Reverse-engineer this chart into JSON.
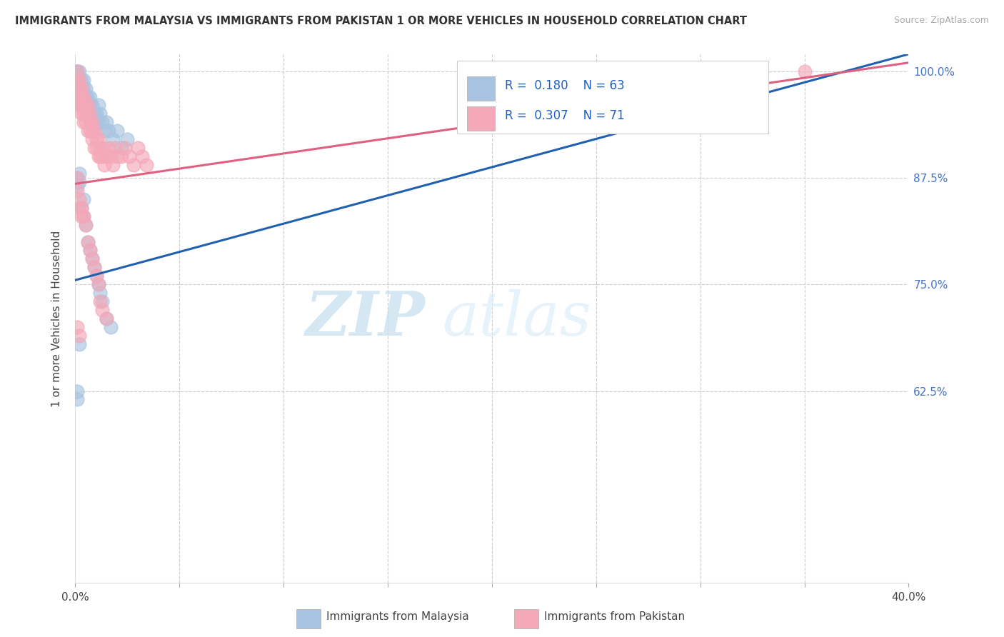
{
  "title": "IMMIGRANTS FROM MALAYSIA VS IMMIGRANTS FROM PAKISTAN 1 OR MORE VEHICLES IN HOUSEHOLD CORRELATION CHART",
  "source": "Source: ZipAtlas.com",
  "ylabel": "1 or more Vehicles in Household",
  "xlim": [
    0.0,
    0.4
  ],
  "ylim": [
    0.4,
    1.02
  ],
  "malaysia_R": 0.18,
  "malaysia_N": 63,
  "pakistan_R": 0.307,
  "pakistan_N": 71,
  "malaysia_color": "#a8c4e0",
  "pakistan_color": "#f4a8b8",
  "malaysia_line_color": "#2060b0",
  "pakistan_line_color": "#e06080",
  "legend_label_malaysia": "Immigrants from Malaysia",
  "legend_label_pakistan": "Immigrants from Pakistan",
  "watermark_zip": "ZIP",
  "watermark_atlas": "atlas",
  "ytick_values": [
    1.0,
    0.875,
    0.75,
    0.625
  ],
  "ytick_labels": [
    "100.0%",
    "87.5%",
    "75.0%",
    "62.5%"
  ],
  "xtick_values": [
    0.0,
    0.05,
    0.1,
    0.15,
    0.2,
    0.25,
    0.3,
    0.35,
    0.4
  ],
  "malaysia_x": [
    0.001,
    0.001,
    0.001,
    0.002,
    0.002,
    0.002,
    0.002,
    0.003,
    0.003,
    0.003,
    0.003,
    0.004,
    0.004,
    0.004,
    0.004,
    0.005,
    0.005,
    0.005,
    0.005,
    0.006,
    0.006,
    0.006,
    0.007,
    0.007,
    0.007,
    0.008,
    0.008,
    0.009,
    0.009,
    0.01,
    0.01,
    0.011,
    0.011,
    0.012,
    0.013,
    0.014,
    0.015,
    0.016,
    0.018,
    0.02,
    0.022,
    0.025,
    0.001,
    0.001,
    0.002,
    0.002,
    0.003,
    0.004,
    0.004,
    0.005,
    0.006,
    0.007,
    0.008,
    0.009,
    0.01,
    0.011,
    0.012,
    0.013,
    0.015,
    0.017,
    0.001,
    0.001,
    0.002
  ],
  "malaysia_y": [
    1.0,
    1.0,
    0.99,
    1.0,
    0.99,
    0.98,
    0.97,
    0.99,
    0.98,
    0.97,
    0.96,
    0.97,
    0.96,
    0.98,
    0.99,
    0.97,
    0.96,
    0.98,
    0.97,
    0.96,
    0.95,
    0.97,
    0.96,
    0.95,
    0.97,
    0.95,
    0.96,
    0.95,
    0.94,
    0.95,
    0.94,
    0.94,
    0.96,
    0.95,
    0.94,
    0.93,
    0.94,
    0.93,
    0.92,
    0.93,
    0.91,
    0.92,
    0.875,
    0.865,
    0.88,
    0.87,
    0.84,
    0.83,
    0.85,
    0.82,
    0.8,
    0.79,
    0.78,
    0.77,
    0.76,
    0.75,
    0.74,
    0.73,
    0.71,
    0.7,
    0.625,
    0.615,
    0.68
  ],
  "pakistan_x": [
    0.001,
    0.001,
    0.001,
    0.002,
    0.002,
    0.002,
    0.002,
    0.003,
    0.003,
    0.003,
    0.003,
    0.004,
    0.004,
    0.004,
    0.004,
    0.005,
    0.005,
    0.005,
    0.006,
    0.006,
    0.006,
    0.007,
    0.007,
    0.007,
    0.008,
    0.008,
    0.008,
    0.009,
    0.009,
    0.01,
    0.01,
    0.011,
    0.011,
    0.012,
    0.012,
    0.013,
    0.013,
    0.014,
    0.015,
    0.016,
    0.017,
    0.018,
    0.019,
    0.02,
    0.022,
    0.024,
    0.026,
    0.028,
    0.03,
    0.032,
    0.034,
    0.001,
    0.001,
    0.002,
    0.002,
    0.003,
    0.003,
    0.004,
    0.005,
    0.006,
    0.007,
    0.008,
    0.009,
    0.01,
    0.011,
    0.012,
    0.013,
    0.015,
    0.35,
    0.001,
    0.002
  ],
  "pakistan_y": [
    1.0,
    0.99,
    0.98,
    0.99,
    0.98,
    0.97,
    0.96,
    0.98,
    0.97,
    0.96,
    0.95,
    0.97,
    0.96,
    0.95,
    0.94,
    0.96,
    0.95,
    0.94,
    0.96,
    0.95,
    0.93,
    0.94,
    0.95,
    0.93,
    0.94,
    0.93,
    0.92,
    0.93,
    0.91,
    0.92,
    0.91,
    0.92,
    0.9,
    0.91,
    0.9,
    0.91,
    0.9,
    0.89,
    0.9,
    0.91,
    0.9,
    0.89,
    0.91,
    0.9,
    0.9,
    0.91,
    0.9,
    0.89,
    0.91,
    0.9,
    0.89,
    0.875,
    0.86,
    0.84,
    0.85,
    0.83,
    0.84,
    0.83,
    0.82,
    0.8,
    0.79,
    0.78,
    0.77,
    0.76,
    0.75,
    0.73,
    0.72,
    0.71,
    1.0,
    0.7,
    0.69
  ]
}
